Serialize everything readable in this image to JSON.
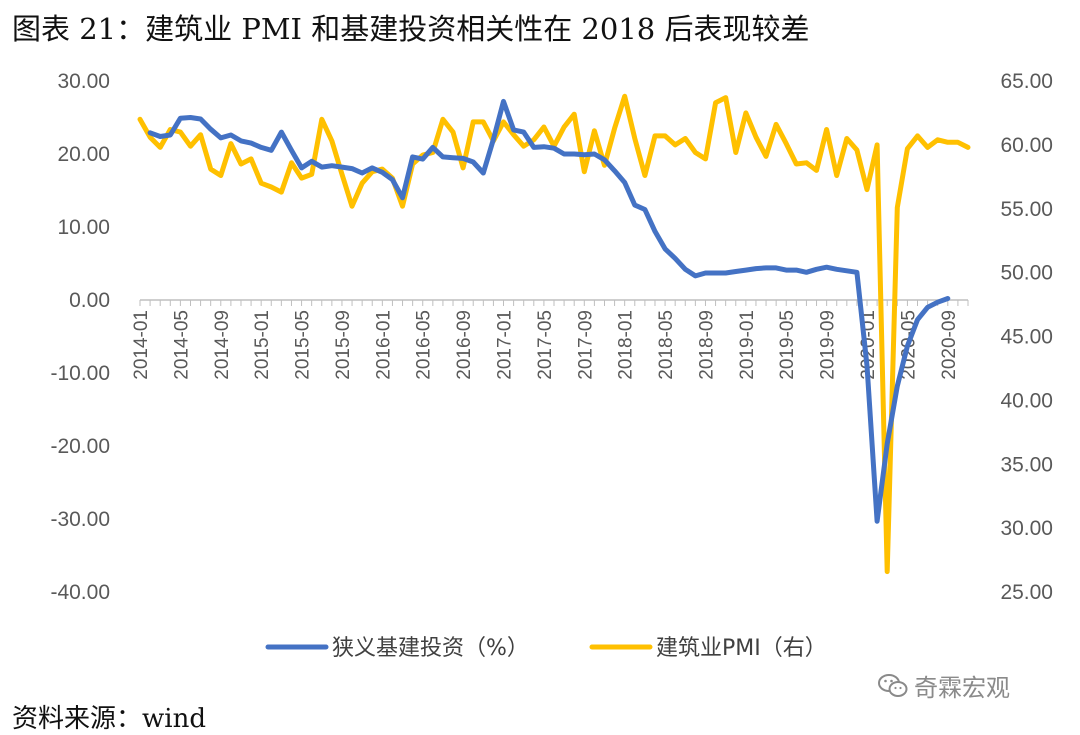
{
  "title": "图表 21：建筑业 PMI 和基建投资相关性在 2018 后表现较差",
  "source": "资料来源：wind",
  "watermark": "奇霖宏观",
  "chart_data": {
    "type": "line",
    "x_ticks": [
      "2014-01",
      "2014-05",
      "2014-09",
      "2015-01",
      "2015-05",
      "2015-09",
      "2016-01",
      "2016-05",
      "2016-09",
      "2017-01",
      "2017-05",
      "2017-09",
      "2018-01",
      "2018-05",
      "2018-09",
      "2019-01",
      "2019-05",
      "2019-09",
      "2020-01",
      "2020-05",
      "2020-09"
    ],
    "left_axis": {
      "ylim": [
        -40,
        30
      ],
      "ticks": [
        "30.00",
        "20.00",
        "10.00",
        "0.00",
        "-10.00",
        "-20.00",
        "-30.00",
        "-40.00"
      ]
    },
    "right_axis": {
      "ylim": [
        25,
        65
      ],
      "ticks": [
        "65.00",
        "60.00",
        "55.00",
        "50.00",
        "45.00",
        "40.00",
        "35.00",
        "30.00",
        "25.00"
      ]
    },
    "legend_position": "bottom",
    "colors": {
      "infra": "#4472C4",
      "pmi": "#FFC000",
      "axis": "#BFBFBF"
    },
    "series": [
      {
        "name": "狭义基建投资（%）",
        "axis": "left",
        "start": "2014-02",
        "values": [
          22.9,
          22.4,
          22.6,
          24.9,
          25.0,
          24.8,
          23.4,
          22.2,
          22.6,
          21.8,
          21.5,
          20.9,
          20.5,
          23.0,
          20.5,
          18.1,
          19.0,
          18.2,
          18.4,
          18.2,
          18.0,
          17.4,
          18.1,
          17.5,
          16.5,
          14.0,
          19.6,
          19.3,
          20.9,
          19.6,
          19.5,
          19.4,
          18.9,
          17.4,
          22.0,
          27.2,
          23.3,
          23.0,
          20.9,
          21.0,
          20.8,
          20.0,
          20.0,
          19.9,
          20.0,
          19.2,
          17.7,
          16.1,
          13.0,
          12.4,
          9.4,
          7.0,
          5.7,
          4.2,
          3.3,
          3.7,
          3.7,
          3.7,
          3.9,
          4.1,
          4.3,
          4.4,
          4.4,
          4.1,
          4.1,
          3.8,
          4.2,
          4.5,
          4.2,
          4.0,
          3.8,
          -9.0,
          -30.3,
          -19.7,
          -11.8,
          -6.3,
          -2.7,
          -1.0,
          -0.3,
          0.2
        ]
      },
      {
        "name": "建筑业PMI（右）",
        "axis": "right",
        "start": "2014-01",
        "values": [
          62.0,
          60.6,
          59.8,
          61.2,
          61.0,
          59.9,
          60.8,
          58.1,
          57.6,
          60.1,
          58.5,
          58.9,
          57.0,
          56.7,
          56.3,
          58.6,
          57.4,
          57.7,
          62.0,
          60.3,
          57.7,
          55.2,
          57.0,
          57.9,
          58.1,
          57.4,
          55.2,
          58.5,
          59.2,
          59.4,
          62.0,
          61.0,
          58.2,
          61.8,
          61.8,
          60.3,
          61.8,
          60.8,
          59.9,
          60.4,
          61.4,
          59.9,
          61.4,
          62.4,
          57.9,
          61.1,
          58.4,
          61.3,
          63.8,
          60.5,
          57.6,
          60.7,
          60.7,
          60.0,
          60.5,
          59.4,
          58.9,
          63.3,
          63.7,
          59.4,
          62.5,
          60.6,
          59.1,
          61.6,
          60.1,
          58.5,
          58.6,
          58.0,
          61.2,
          57.6,
          60.5,
          59.6,
          56.5,
          60.0,
          26.6,
          55.1,
          59.7,
          60.7,
          59.8,
          60.4,
          60.2,
          60.2,
          59.8
        ]
      }
    ]
  }
}
